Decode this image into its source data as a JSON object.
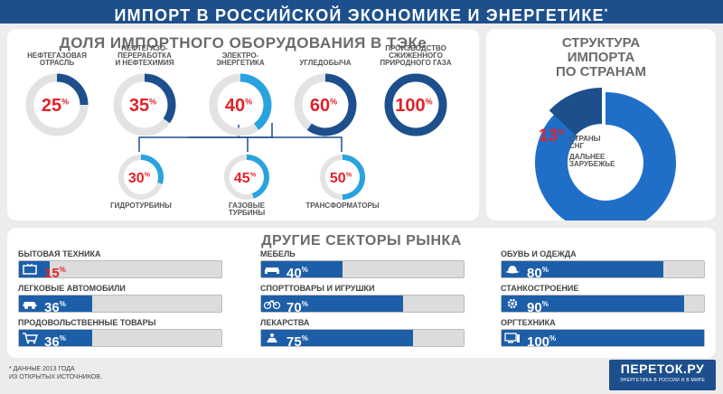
{
  "header": {
    "title": "ИМПОРТ В РОССИЙСКОЙ ЭКОНОМИКЕ И ЭНЕРГЕТИКЕ",
    "mark": "*"
  },
  "teke": {
    "title": "ДОЛЯ ИМПОРТНОГО ОБОРУДОВАНИЯ В ТЭКе",
    "items": [
      {
        "label": "НЕФТЕГАЗОВАЯ\nОТРАСЛЬ",
        "value": 25,
        "unit": "%"
      },
      {
        "label": "НЕФТЕГАЗО-\nПЕРЕРАБОТКА\nИ НЕФТЕХИМИЯ",
        "value": 35,
        "unit": "%"
      },
      {
        "label": "ЭЛЕКТРО-\nЭНЕРГЕТИКА",
        "value": 40,
        "unit": "%"
      },
      {
        "label": "УГЛЕДОБЫЧА",
        "value": 60,
        "unit": "%"
      },
      {
        "label": "ПРОИЗВОДСТВО\nСЖИЖЕННОГО\nПРИРОДНОГО ГАЗА",
        "value": 100,
        "unit": "%"
      }
    ],
    "sub_items": [
      {
        "label": "ГИДРОТУРБИНЫ",
        "value": 30,
        "unit": "%"
      },
      {
        "label": "ГАЗОВЫЕ\nТУРБИНЫ",
        "value": 45,
        "unit": "%"
      },
      {
        "label": "ТРАНСФОРМАТОРЫ",
        "value": 50,
        "unit": "%"
      }
    ]
  },
  "structure": {
    "title": "СТРУКТУРА\nИМПОРТА\nПО СТРАНАМ",
    "slices": [
      {
        "label": "СТРАНЫ\nСНГ",
        "value": 13,
        "unit": "%",
        "color": "#1d4f8c"
      },
      {
        "label": "ДАЛЬНЕЕ\nЗАРУБЕЖЬЕ",
        "value": 87,
        "unit": "%",
        "color": "#1f6fc8"
      }
    ]
  },
  "market": {
    "title": "ДРУГИЕ СЕКТОРЫ РЫНКА",
    "items": [
      {
        "label": "БЫТОВАЯ ТЕХНИКА",
        "value": 15,
        "unit": "%",
        "icon": "tv-icon"
      },
      {
        "label": "ЛЕГКОВЫЕ АВТОМОБИЛИ",
        "value": 36,
        "unit": "%",
        "icon": "car-icon"
      },
      {
        "label": "ПРОДОВОЛЬСТВЕННЫЕ ТОВАРЫ",
        "value": 36,
        "unit": "%",
        "icon": "shopping-cart-icon"
      },
      {
        "label": "МЕБЕЛЬ",
        "value": 40,
        "unit": "%",
        "icon": "sofa-icon"
      },
      {
        "label": "СПОРТТОВАРЫ И ИГРУШКИ",
        "value": 70,
        "unit": "%",
        "icon": "bicycle-icon"
      },
      {
        "label": "ЛЕКАРСТВА",
        "value": 75,
        "unit": "%",
        "icon": "medicine-icon"
      },
      {
        "label": "ОБУВЬ И ОДЕЖДА",
        "value": 80,
        "unit": "%",
        "icon": "hat-icon"
      },
      {
        "label": "СТАНКОСТРОЕНИЕ",
        "value": 90,
        "unit": "%",
        "icon": "gear-icon"
      },
      {
        "label": "ОРГТЕХНИКА",
        "value": 100,
        "unit": "%",
        "icon": "computer-icon"
      }
    ]
  },
  "footnote": "* ДАННЫЕ 2013 ГОДА\nИЗ ОТКРЫТЫХ ИСТОЧНИКОВ.",
  "logo": {
    "name": "ПЕРЕТОК.РУ",
    "tagline": "ЭНЕРГЕТИКА В РОССИИ И В МИРЕ"
  },
  "colors": {
    "accent": "#1d4f8c",
    "bar": "#1d5ea8",
    "ring_light": "#29a3e0",
    "ring_bg": "#e3e3e3",
    "value": "#e2222a"
  },
  "chart_data": [
    {
      "type": "donut",
      "title": "ДОЛЯ ИМПОРТНОГО ОБОРУДОВАНИЯ В ТЭКе",
      "categories": [
        "НЕФТЕГАЗОВАЯ ОТРАСЛЬ",
        "НЕФТЕГАЗОПЕРЕРАБОТКА И НЕФТЕХИМИЯ",
        "ЭЛЕКТРОЭНЕРГЕТИКА",
        "УГЛЕДОБЫЧА",
        "ПРОИЗВОДСТВО СЖИЖЕННОГО ПРИРОДНОГО ГАЗА",
        "ГИДРОТУРБИНЫ",
        "ГАЗОВЫЕ ТУРБИНЫ",
        "ТРАНСФОРМАТОРЫ"
      ],
      "values": [
        25,
        35,
        40,
        60,
        100,
        30,
        45,
        50
      ]
    },
    {
      "type": "pie",
      "title": "СТРУКТУРА ИМПОРТА ПО СТРАНАМ",
      "categories": [
        "СТРАНЫ СНГ",
        "ДАЛЬНЕЕ ЗАРУБЕЖЬЕ"
      ],
      "values": [
        13,
        87
      ]
    },
    {
      "type": "bar",
      "title": "ДРУГИЕ СЕКТОРЫ РЫНКА",
      "categories": [
        "БЫТОВАЯ ТЕХНИКА",
        "ЛЕГКОВЫЕ АВТОМОБИЛИ",
        "ПРОДОВОЛЬСТВЕННЫЕ ТОВАРЫ",
        "МЕБЕЛЬ",
        "СПОРТТОВАРЫ И ИГРУШКИ",
        "ЛЕКАРСТВА",
        "ОБУВЬ И ОДЕЖДА",
        "СТАНКОСТРОЕНИЕ",
        "ОРГТЕХНИКА"
      ],
      "values": [
        15,
        36,
        36,
        40,
        70,
        75,
        80,
        90,
        100
      ],
      "ylim": [
        0,
        100
      ]
    }
  ]
}
